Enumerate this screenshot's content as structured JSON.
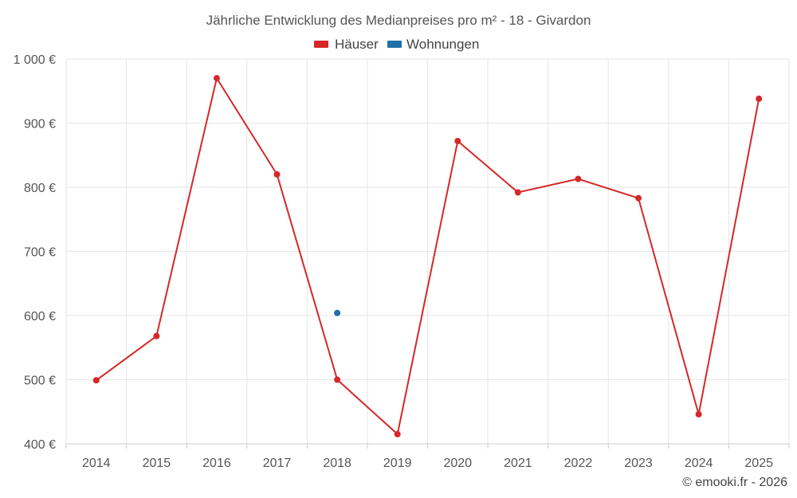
{
  "chart_data": {
    "type": "line",
    "title": "Jährliche Entwicklung des Medianpreises pro m² - 18 - Givardon",
    "xlabel": "",
    "ylabel": "",
    "categories": [
      "2014",
      "2015",
      "2016",
      "2017",
      "2018",
      "2019",
      "2020",
      "2021",
      "2022",
      "2023",
      "2024",
      "2025"
    ],
    "ylim": [
      400,
      1000
    ],
    "yticks": [
      400,
      500,
      600,
      700,
      800,
      900,
      1000
    ],
    "ytick_labels": [
      "400 €",
      "500 €",
      "600 €",
      "700 €",
      "800 €",
      "900 €",
      "1 000 €"
    ],
    "grid": true,
    "legend_position": "top-center",
    "series": [
      {
        "name": "Häuser",
        "color": "#d62728",
        "values": [
          499,
          568,
          970,
          820,
          500,
          415,
          872,
          792,
          813,
          783,
          446,
          938
        ]
      },
      {
        "name": "Wohnungen",
        "color": "#1f6fa8",
        "values": [
          null,
          null,
          null,
          null,
          604,
          null,
          null,
          null,
          null,
          null,
          null,
          null
        ]
      }
    ]
  },
  "credit": "© emooki.fr - 2026"
}
